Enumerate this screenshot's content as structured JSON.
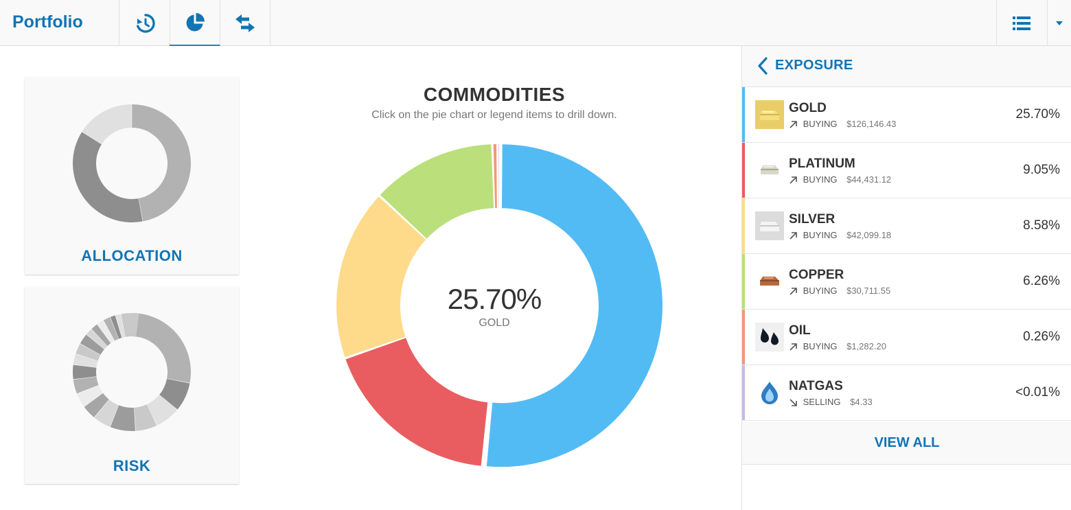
{
  "app": {
    "title": "Portfolio"
  },
  "nav": {
    "tabs": [
      {
        "name": "history-icon",
        "active": false
      },
      {
        "name": "pie-chart-icon",
        "active": true
      },
      {
        "name": "swap-arrows-icon",
        "active": false
      }
    ],
    "right": [
      "list-icon",
      "caret-down-icon"
    ]
  },
  "cards": {
    "allocation": {
      "label": "ALLOCATION"
    },
    "risk": {
      "label": "RISK"
    }
  },
  "chart": {
    "title": "COMMODITIES",
    "subtitle": "Click on the pie chart or legend items to drill down.",
    "center_value": "25.70%",
    "center_label": "GOLD"
  },
  "chart_data": {
    "type": "pie",
    "donut": true,
    "title": "COMMODITIES",
    "subtitle": "Click on the pie chart or legend items to drill down.",
    "selected": "GOLD",
    "categories": [
      "GOLD",
      "PLATINUM",
      "SILVER",
      "COPPER",
      "OIL",
      "NATGAS"
    ],
    "values": [
      25.7,
      9.05,
      8.58,
      6.26,
      0.26,
      0.01
    ],
    "colors": [
      "#53bbf4",
      "#e95d60",
      "#fedb8b",
      "#badf7b",
      "#f2987a",
      "#c7b9e8"
    ]
  },
  "exposure": {
    "title": "EXPOSURE",
    "items": [
      {
        "name": "GOLD",
        "direction": "BUYING",
        "amount": "$126,146.43",
        "percent": "25.70%",
        "color": "#53bbf4",
        "icon": "gold-bar-icon",
        "trend": "up"
      },
      {
        "name": "PLATINUM",
        "direction": "BUYING",
        "amount": "$44,431.12",
        "percent": "9.05%",
        "color": "#e95d60",
        "icon": "platinum-bar-icon",
        "trend": "up"
      },
      {
        "name": "SILVER",
        "direction": "BUYING",
        "amount": "$42,099.18",
        "percent": "8.58%",
        "color": "#fedb8b",
        "icon": "silver-bar-icon",
        "trend": "up"
      },
      {
        "name": "COPPER",
        "direction": "BUYING",
        "amount": "$30,711.55",
        "percent": "6.26%",
        "color": "#badf7b",
        "icon": "copper-bar-icon",
        "trend": "up"
      },
      {
        "name": "OIL",
        "direction": "BUYING",
        "amount": "$1,282.20",
        "percent": "0.26%",
        "color": "#f2987a",
        "icon": "oil-drops-icon",
        "trend": "up"
      },
      {
        "name": "NATGAS",
        "direction": "SELLING",
        "amount": "$4.33",
        "percent": "<0.01%",
        "color": "#c7b9e8",
        "icon": "gas-flame-icon",
        "trend": "down"
      }
    ],
    "view_all": "VIEW ALL"
  },
  "colors": {
    "brand": "#1274b3",
    "accent": "#1a85c6"
  }
}
